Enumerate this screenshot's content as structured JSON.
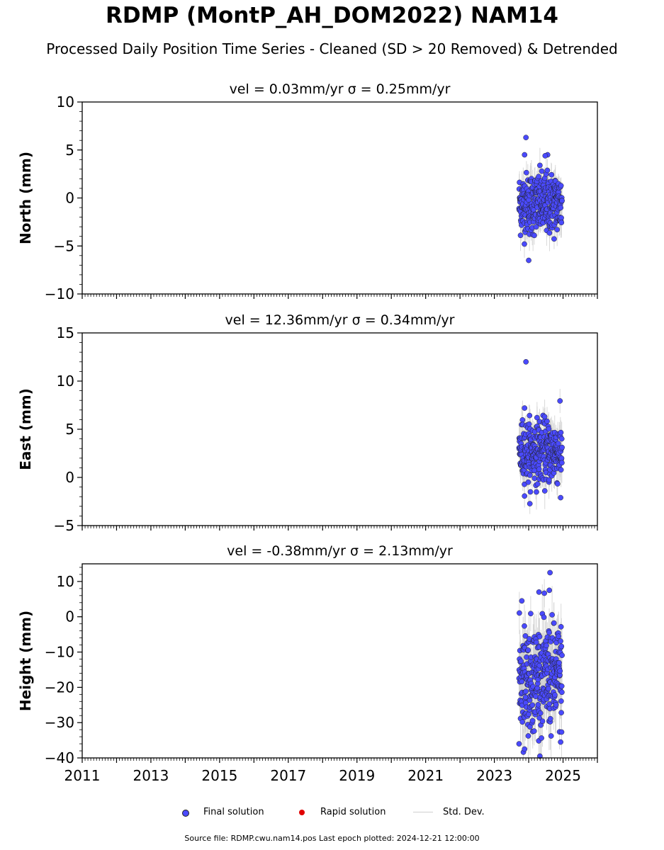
{
  "title": "RDMP (MontP_AH_DOM2022) NAM14",
  "subtitle": "Processed Daily Position Time Series - Cleaned (SD > 20 Removed) & Detrended",
  "footer": "Source file: RDMP.cwu.nam14.pos  Last epoch plotted: 2024-12-21 12:00:00",
  "legend": {
    "final": "Final solution",
    "rapid": "Rapid solution",
    "std": "Std. Dev."
  },
  "colors": {
    "final": "#4a4aff",
    "rapid": "#e00000",
    "std": "#cfcfcf"
  },
  "chart_data": [
    {
      "type": "scatter",
      "title": "vel = 0.03mm/yr   σ = 0.25mm/yr",
      "ylabel": "North (mm)",
      "xlim": [
        2011,
        2026
      ],
      "ylim": [
        -10,
        10
      ],
      "yticks": [
        -10,
        -5,
        0,
        5,
        10
      ],
      "xticks": [
        2011,
        2013,
        2015,
        2017,
        2019,
        2021,
        2023,
        2025
      ],
      "data_span": [
        2023.72,
        2024.97
      ],
      "center": -0.6,
      "spread": 1.6,
      "std_dev": 1.4,
      "outliers": [
        {
          "x": 2023.92,
          "y": 6.3
        },
        {
          "x": 2024.0,
          "y": -6.5
        },
        {
          "x": 2023.88,
          "y": 4.5
        },
        {
          "x": 2024.55,
          "y": 4.5
        },
        {
          "x": 2024.48,
          "y": 4.4
        }
      ]
    },
    {
      "type": "scatter",
      "title": "vel = 12.36mm/yr   σ = 0.34mm/yr",
      "ylabel": "East (mm)",
      "xlim": [
        2011,
        2026
      ],
      "ylim": [
        -5,
        15
      ],
      "yticks": [
        -5,
        0,
        5,
        10,
        15
      ],
      "xticks": [
        2011,
        2013,
        2015,
        2017,
        2019,
        2021,
        2023,
        2025
      ],
      "data_span": [
        2023.72,
        2024.97
      ],
      "center": 2.7,
      "spread": 1.6,
      "std_dev": 1.5,
      "outliers": [
        {
          "x": 2023.92,
          "y": 12.0
        },
        {
          "x": 2023.88,
          "y": 7.2
        },
        {
          "x": 2024.93,
          "y": -2.1
        },
        {
          "x": 2024.05,
          "y": -1.5
        }
      ]
    },
    {
      "type": "scatter",
      "title": "vel = -0.38mm/yr   σ = 2.13mm/yr",
      "ylabel": "Height (mm)",
      "xlim": [
        2011,
        2026
      ],
      "ylim": [
        -40,
        15
      ],
      "yticks": [
        -40,
        -30,
        -20,
        -10,
        0,
        10
      ],
      "xticks": [
        2011,
        2013,
        2015,
        2017,
        2019,
        2021,
        2023,
        2025
      ],
      "data_span": [
        2023.72,
        2024.97
      ],
      "center": -17,
      "spread": 7.5,
      "std_dev": 6,
      "outliers": [
        {
          "x": 2024.62,
          "y": 12.5
        },
        {
          "x": 2024.6,
          "y": 7.5
        },
        {
          "x": 2024.3,
          "y": 7.0
        },
        {
          "x": 2023.8,
          "y": 4.5
        },
        {
          "x": 2023.88,
          "y": -37.5
        },
        {
          "x": 2023.72,
          "y": -36.0
        },
        {
          "x": 2024.93,
          "y": -35.5
        }
      ]
    }
  ]
}
